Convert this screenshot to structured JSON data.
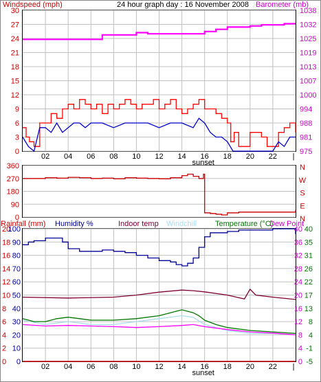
{
  "header": {
    "wind_label": "Windspeed (mph)",
    "title": "24 hour graph day : 16 November 2008",
    "baro_label": "Barometer (mb)"
  },
  "middle": {
    "compass_labels": [
      "N",
      "W",
      "S",
      "E",
      "N"
    ]
  },
  "bottom": {
    "headers": [
      "Rainfall (mm)",
      "Humidity %",
      "Indoor temp",
      "Windchill",
      "Temperature (°C)",
      "Dew Point"
    ]
  },
  "colors": {
    "wind_gust": "#ff0000",
    "wind_avg": "#0000cc",
    "barometer": "#ff00ff",
    "direction": "#cc0000",
    "rainfall": "#cc0000",
    "humidity": "#000099",
    "indoor": "#800033",
    "windchill": "#aaddee",
    "temperature": "#007700",
    "dewpoint": "#ff00ff",
    "grid": "#c0c0c0"
  },
  "chart_data": [
    {
      "type": "line",
      "title": "24 hour graph day : 16 November 2008",
      "x_tick_labels": [
        "02",
        "04",
        "06",
        "08",
        "10",
        "12",
        "14",
        "16",
        "18",
        "20",
        "22"
      ],
      "x_marker": "sunset",
      "y_left_label": "Windspeed (mph)",
      "y_left_ticks": [
        "0",
        "3",
        "6",
        "9",
        "12",
        "15",
        "18",
        "21",
        "24",
        "27",
        "30"
      ],
      "y_left_range": [
        0,
        30
      ],
      "y_right_label": "Barometer (mb)",
      "y_right_ticks": [
        "975",
        "981",
        "988",
        "994",
        "1000",
        "1007",
        "1013",
        "1019",
        "1025",
        "1032",
        "1038"
      ],
      "y_right_range": [
        975,
        1038
      ],
      "grid": true,
      "series": [
        {
          "key": "gust",
          "axis": "left",
          "color": "#ff0000",
          "x": [
            0,
            0.3,
            0.6,
            1,
            1.5,
            2,
            2.5,
            3,
            3.5,
            4,
            4.5,
            5,
            5.5,
            6,
            6.5,
            7,
            7.5,
            8,
            8.5,
            9,
            9.5,
            10,
            10.5,
            11,
            11.5,
            12,
            12.5,
            13,
            13.5,
            14,
            14.5,
            15,
            15.5,
            16,
            16.5,
            17,
            17.5,
            18,
            18.3,
            18.6,
            19,
            20,
            21,
            21.5,
            22,
            22.5,
            23,
            23.5,
            24
          ],
          "y": [
            5,
            3,
            2,
            1,
            6,
            6,
            8,
            7,
            9,
            10,
            9,
            11,
            10,
            9,
            10,
            8,
            10,
            9,
            10,
            11,
            10,
            9,
            10,
            10,
            11,
            9,
            10,
            11,
            9,
            8,
            9,
            10,
            11,
            9,
            9,
            8,
            7,
            6,
            2,
            4,
            1,
            4,
            3,
            1,
            1,
            4,
            5,
            6,
            4
          ]
        },
        {
          "key": "average",
          "axis": "left",
          "color": "#0000cc",
          "x": [
            0,
            0.5,
            1,
            1.5,
            2,
            2.5,
            3,
            3.5,
            4,
            4.5,
            5,
            5.5,
            6,
            7,
            8,
            9,
            10,
            11,
            12,
            13,
            14,
            15,
            15.5,
            16,
            16.5,
            17,
            17.5,
            18,
            18.5,
            19,
            20,
            21,
            22,
            22.5,
            23,
            23.5,
            24
          ],
          "y": [
            3,
            1,
            0,
            5,
            5,
            4,
            6,
            4,
            5,
            6,
            6,
            5,
            6,
            6,
            5,
            6,
            6,
            6,
            5,
            6,
            6,
            5,
            7,
            6,
            4,
            3,
            3,
            2,
            0,
            0,
            0,
            0,
            0,
            2,
            1,
            3,
            3
          ]
        },
        {
          "key": "barometer",
          "axis": "right",
          "color": "#ff00ff",
          "x": [
            0,
            4,
            6.5,
            7,
            9,
            10,
            11,
            12,
            13,
            14,
            15,
            16,
            17,
            18,
            19,
            20,
            21,
            22,
            23,
            24
          ],
          "y": [
            1025,
            1025,
            1025,
            1027,
            1027,
            1028,
            1027.5,
            1027.5,
            1027.5,
            1027.5,
            1027.5,
            1028.5,
            1029.5,
            1030.5,
            1030.5,
            1031,
            1031.5,
            1031.5,
            1032,
            1032
          ]
        }
      ]
    },
    {
      "type": "scatter",
      "x_marker": "none",
      "y_left_ticks": [
        "0",
        "90",
        "180",
        "270",
        "360"
      ],
      "y_range": [
        0,
        360
      ],
      "y_right_ticks": [
        "N",
        "E",
        "S",
        "W",
        "N"
      ],
      "series": [
        {
          "key": "direction",
          "color": "#cc0000",
          "x": [
            0,
            1,
            2,
            3,
            4,
            5,
            6,
            7,
            8,
            9,
            10,
            11,
            12,
            13,
            14,
            14.5,
            15,
            15.5,
            15.9,
            16,
            16.5,
            17,
            17.5,
            18,
            19,
            20,
            21,
            22,
            23,
            23.8,
            24
          ],
          "y": [
            270,
            270,
            275,
            272,
            278,
            275,
            270,
            272,
            268,
            275,
            272,
            270,
            268,
            275,
            290,
            300,
            285,
            270,
            300,
            30,
            25,
            20,
            15,
            30,
            35,
            35,
            35,
            35,
            35,
            35,
            50
          ]
        }
      ]
    },
    {
      "type": "line",
      "x_tick_labels": [
        "02",
        "04",
        "06",
        "08",
        "10",
        "12",
        "14",
        "16",
        "18",
        "20",
        "22"
      ],
      "x_marker": "sunset",
      "y_rain_ticks": [
        "0",
        "2",
        "4",
        "6",
        "8",
        "10",
        "12",
        "14",
        "16",
        "18",
        "20"
      ],
      "y_rain_range": [
        0,
        20
      ],
      "y_humidity_ticks": [
        "0",
        "10",
        "20",
        "30",
        "40",
        "50",
        "60",
        "70",
        "80",
        "90",
        "100"
      ],
      "y_humidity_range": [
        0,
        100
      ],
      "y_temp_ticks": [
        "-5",
        "-1",
        "4",
        "8",
        "13",
        "17",
        "22",
        "26",
        "31",
        "35",
        "40"
      ],
      "y_temp_range": [
        -5,
        40
      ],
      "y_dew_ticks": [
        "0",
        "4",
        "8",
        "12",
        "16",
        "20",
        "24",
        "28",
        "32",
        "36",
        "40"
      ],
      "grid": true,
      "series": [
        {
          "key": "rainfall",
          "axis": "rain",
          "color": "#cc0000",
          "x": [
            0,
            24
          ],
          "y": [
            0,
            0
          ]
        },
        {
          "key": "humidity",
          "axis": "humidity",
          "color": "#000099",
          "x": [
            0,
            0.5,
            1,
            2,
            3,
            3.5,
            4,
            5,
            6,
            7,
            8,
            9,
            10,
            11,
            12,
            13,
            13.5,
            14,
            14.5,
            15,
            15.5,
            16,
            16.5,
            17,
            18,
            19,
            20,
            21,
            22,
            23,
            23.5,
            24
          ],
          "y": [
            88,
            90,
            91,
            93,
            93,
            90,
            85,
            83,
            83,
            84,
            83,
            82,
            80,
            78,
            76,
            75,
            73,
            72,
            74,
            78,
            86,
            94,
            97,
            97,
            98,
            99,
            99,
            99,
            100,
            100,
            100,
            96
          ]
        },
        {
          "key": "indoor",
          "axis": "temp",
          "color": "#800033",
          "x": [
            0,
            4,
            8,
            10,
            12,
            14,
            15,
            16,
            18,
            19.5,
            20,
            20.5,
            22,
            24
          ],
          "y": [
            16.8,
            16.5,
            16.8,
            17.5,
            18.5,
            19.2,
            19,
            18.6,
            17.5,
            16.2,
            19.5,
            17.5,
            16.8,
            16
          ]
        },
        {
          "key": "windchill",
          "axis": "temp",
          "color": "#aaddee",
          "x": [
            0,
            2,
            3,
            4,
            6,
            8,
            10,
            12,
            14,
            15,
            16,
            18,
            20,
            22,
            24
          ],
          "y": [
            9,
            7.5,
            8,
            8.5,
            7.5,
            7.5,
            8.5,
            9.5,
            10.5,
            10,
            7.5,
            5.5,
            4.5,
            4.5,
            4
          ]
        },
        {
          "key": "temperature",
          "axis": "temp",
          "color": "#007700",
          "x": [
            0,
            1,
            2,
            3,
            4,
            5,
            6,
            8,
            10,
            12,
            13,
            14,
            15,
            15.5,
            16,
            17,
            18,
            20,
            22,
            24
          ],
          "y": [
            9.5,
            8.5,
            8.5,
            9.5,
            10,
            9.5,
            9,
            9,
            9.5,
            10.5,
            11.5,
            12.5,
            11.5,
            10.5,
            9,
            7.5,
            6.5,
            5.5,
            5,
            4.5
          ]
        },
        {
          "key": "dewpoint",
          "axis": "temp",
          "color": "#ff00ff",
          "x": [
            0,
            2,
            4,
            6,
            8,
            10,
            12,
            14,
            15,
            16,
            18,
            20,
            22,
            24
          ],
          "y": [
            7.5,
            7,
            7.2,
            7,
            6.8,
            6.5,
            6.8,
            7.2,
            7.5,
            6.8,
            5.8,
            5,
            4.6,
            4
          ]
        }
      ]
    }
  ]
}
